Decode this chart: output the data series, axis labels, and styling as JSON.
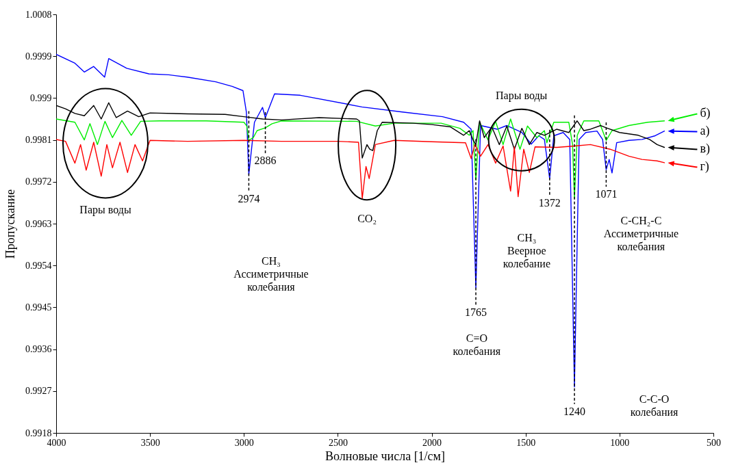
{
  "chart_data": {
    "type": "line",
    "xlabel": "Волновые числа [1/см]",
    "ylabel": "Пропускание",
    "xlim": [
      4000,
      500
    ],
    "xticks": [
      4000,
      3500,
      3000,
      2500,
      2000,
      1500,
      1000,
      500
    ],
    "ylim": [
      0.9918,
      1.0008
    ],
    "yticks": [
      0.9918,
      0.9927,
      0.9936,
      0.9945,
      0.9954,
      0.9963,
      0.9972,
      0.9981,
      0.999,
      0.9999,
      1.0008
    ],
    "line_style": "solid",
    "legend": "right",
    "series": [
      {
        "name": "а)",
        "color": "#0000ff",
        "x": [
          4000,
          3900,
          3850,
          3800,
          3742,
          3720,
          3624,
          3506,
          3400,
          3302,
          3150,
          3062,
          3005,
          2987,
          2974,
          2944,
          2901,
          2886,
          2837,
          2700,
          2372,
          2157,
          1942,
          1830,
          1790,
          1765,
          1740,
          1650,
          1600,
          1520,
          1470,
          1430,
          1400,
          1372,
          1350,
          1300,
          1265,
          1240,
          1215,
          1180,
          1120,
          1090,
          1071,
          1055,
          1040,
          1015,
          950,
          880,
          810,
          761
        ],
        "values": [
          0.99994,
          0.99975,
          0.99956,
          0.99968,
          0.99945,
          0.99985,
          0.99964,
          0.99952,
          0.9995,
          0.99945,
          0.99935,
          0.99925,
          0.99916,
          0.9987,
          0.99736,
          0.99848,
          0.9988,
          0.99858,
          0.99909,
          0.99906,
          0.99881,
          0.9987,
          0.9986,
          0.99848,
          0.99833,
          0.99492,
          0.99841,
          0.99833,
          0.99841,
          0.99826,
          0.99801,
          0.99819,
          0.99811,
          0.99727,
          0.99819,
          0.99826,
          0.99811,
          0.99279,
          0.99811,
          0.99826,
          0.99829,
          0.99811,
          0.99746,
          0.99768,
          0.99739,
          0.99804,
          0.99809,
          0.99811,
          0.99819,
          0.99829
        ]
      },
      {
        "name": "б)",
        "color": "#00ee00",
        "x": [
          4000,
          3900,
          3850,
          3820,
          3780,
          3740,
          3700,
          3650,
          3600,
          3550,
          3450,
          3200,
          3000,
          2985,
          2974,
          2950,
          2930,
          2886,
          2850,
          2800,
          2400,
          2300,
          2200,
          1950,
          1850,
          1800,
          1780,
          1765,
          1745,
          1700,
          1660,
          1620,
          1580,
          1530,
          1490,
          1440,
          1400,
          1387,
          1350,
          1270,
          1250,
          1240,
          1225,
          1190,
          1110,
          1071,
          1040,
          950,
          850,
          761
        ],
        "values": [
          0.99855,
          0.99848,
          0.9981,
          0.99845,
          0.998,
          0.9985,
          0.99815,
          0.99852,
          0.9982,
          0.9985,
          0.99851,
          0.99851,
          0.99848,
          0.9984,
          0.99809,
          0.99815,
          0.9983,
          0.99836,
          0.99845,
          0.99851,
          0.9985,
          0.9984,
          0.99846,
          0.99846,
          0.99835,
          0.9982,
          0.9983,
          0.99724,
          0.99848,
          0.9981,
          0.9985,
          0.998,
          0.99855,
          0.9979,
          0.9984,
          0.99815,
          0.9983,
          0.99804,
          0.99848,
          0.99848,
          0.998,
          0.99684,
          0.9982,
          0.99851,
          0.99851,
          0.99809,
          0.9983,
          0.99841,
          0.99848,
          0.99851
        ]
      },
      {
        "name": "в)",
        "color": "#000000",
        "x": [
          4000,
          3950,
          3900,
          3850,
          3800,
          3760,
          3720,
          3680,
          3620,
          3560,
          3500,
          3300,
          3100,
          3000,
          2900,
          2800,
          2600,
          2400,
          2385,
          2370,
          2345,
          2330,
          2314,
          2290,
          2264,
          2100,
          2000,
          1900,
          1830,
          1800,
          1780,
          1765,
          1745,
          1720,
          1680,
          1640,
          1600,
          1560,
          1520,
          1480,
          1440,
          1400,
          1334,
          1270,
          1226,
          1190,
          1155,
          1100,
          1071,
          1000,
          900,
          840,
          800,
          761
        ],
        "values": [
          0.99884,
          0.99877,
          0.99867,
          0.99862,
          0.99884,
          0.99855,
          0.9989,
          0.99858,
          0.99872,
          0.9986,
          0.99868,
          0.99866,
          0.99865,
          0.9986,
          0.99855,
          0.99853,
          0.99858,
          0.99855,
          0.99851,
          0.99771,
          0.998,
          0.9979,
          0.99787,
          0.9983,
          0.99848,
          0.99846,
          0.99843,
          0.99838,
          0.9982,
          0.9983,
          0.9981,
          0.998,
          0.99851,
          0.99815,
          0.99838,
          0.998,
          0.9984,
          0.9979,
          0.99835,
          0.998,
          0.99826,
          0.9982,
          0.99833,
          0.99826,
          0.99851,
          0.9983,
          0.99833,
          0.99841,
          0.99836,
          0.99826,
          0.9982,
          0.99811,
          0.998,
          0.99794
        ]
      },
      {
        "name": "г)",
        "color": "#ff0000",
        "x": [
          4000,
          3950,
          3900,
          3870,
          3840,
          3800,
          3760,
          3730,
          3700,
          3660,
          3620,
          3580,
          3540,
          3500,
          3300,
          3000,
          2800,
          2500,
          2390,
          2370,
          2350,
          2333,
          2300,
          2200,
          2000,
          1820,
          1790,
          1770,
          1740,
          1700,
          1660,
          1620,
          1580,
          1560,
          1540,
          1510,
          1480,
          1450,
          1334,
          1240,
          1155,
          1050,
          950,
          880,
          800,
          761
        ],
        "values": [
          0.99811,
          0.99807,
          0.9976,
          0.998,
          0.99745,
          0.99805,
          0.99732,
          0.998,
          0.9975,
          0.99805,
          0.9974,
          0.998,
          0.99765,
          0.99809,
          0.99807,
          0.99809,
          0.99807,
          0.99807,
          0.99805,
          0.99684,
          0.99753,
          0.99727,
          0.998,
          0.99809,
          0.99806,
          0.99804,
          0.9977,
          0.998,
          0.99775,
          0.998,
          0.9976,
          0.99797,
          0.997,
          0.99795,
          0.99688,
          0.9979,
          0.9974,
          0.99795,
          0.99794,
          0.99797,
          0.998,
          0.9979,
          0.99775,
          0.99768,
          0.99765,
          0.99761
        ]
      }
    ],
    "annotations": [
      "Пары воды",
      {
        "text": "2974",
        "x": 2974,
        "y": 0.99736
      },
      {
        "text": "2886",
        "x": 2886,
        "y": 0.99836
      },
      "CH₃\nАссиметричные\nколебания",
      "CO₂",
      "Пары воды",
      {
        "text": "1765",
        "x": 1765,
        "y": 0.99492
      },
      "C=O\nколебания",
      {
        "text": "1372",
        "x": 1372,
        "y": 0.99727
      },
      "CH₃\nВеерное\nколебание",
      {
        "text": "1071",
        "x": 1071,
        "y": 0.99746
      },
      "C-CH₂-C\nАссиметричные\nколебания",
      {
        "text": "1240",
        "x": 1240,
        "y": 0.99279
      },
      "C-C-O\nколебания"
    ]
  }
}
